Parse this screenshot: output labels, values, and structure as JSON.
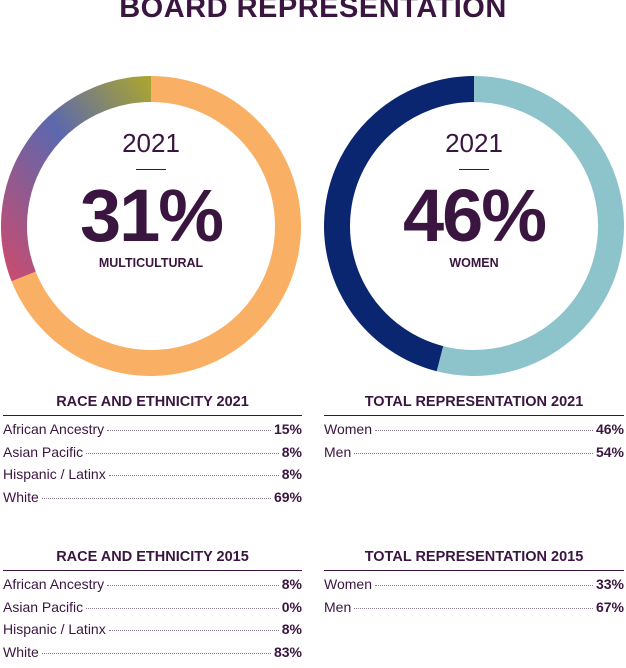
{
  "title": "BOARD REPRESENTATION",
  "donuts": {
    "multicultural": {
      "year": "2021",
      "value": "31%",
      "label": "MULTICULTURAL"
    },
    "women": {
      "year": "2021",
      "value": "46%",
      "label": "WOMEN"
    }
  },
  "colors": {
    "text": "#3a1540",
    "orange": "#f9b064",
    "navy": "#0b2670",
    "teal": "#8dc3ca",
    "gradient_start": "#c44d73",
    "gradient_mid": "#5b68ae",
    "gradient_end": "#a8a335"
  },
  "chart_data": [
    {
      "type": "pie",
      "title": "MULTICULTURAL",
      "categories": [
        "Multicultural",
        "White"
      ],
      "values": [
        31,
        69
      ]
    },
    {
      "type": "pie",
      "title": "WOMEN",
      "categories": [
        "Women",
        "Men"
      ],
      "values": [
        46,
        54
      ]
    },
    {
      "type": "table",
      "title": "RACE AND ETHNICITY 2021",
      "rows": [
        {
          "label": "African Ancestry",
          "value": "15%"
        },
        {
          "label": "Asian Pacific",
          "value": "8%"
        },
        {
          "label": "Hispanic / Latinx",
          "value": "8%"
        },
        {
          "label": "White",
          "value": "69%"
        }
      ]
    },
    {
      "type": "table",
      "title": "TOTAL REPRESENTATION 2021",
      "rows": [
        {
          "label": "Women",
          "value": "46%"
        },
        {
          "label": "Men",
          "value": "54%"
        }
      ]
    },
    {
      "type": "table",
      "title": "RACE AND ETHNICITY 2015",
      "rows": [
        {
          "label": "African Ancestry",
          "value": "8%"
        },
        {
          "label": "Asian Pacific",
          "value": "0%"
        },
        {
          "label": "Hispanic / Latinx",
          "value": "8%"
        },
        {
          "label": "White",
          "value": "83%"
        }
      ]
    },
    {
      "type": "table",
      "title": "TOTAL REPRESENTATION 2015",
      "rows": [
        {
          "label": "Women",
          "value": "33%"
        },
        {
          "label": "Men",
          "value": "67%"
        }
      ]
    }
  ]
}
